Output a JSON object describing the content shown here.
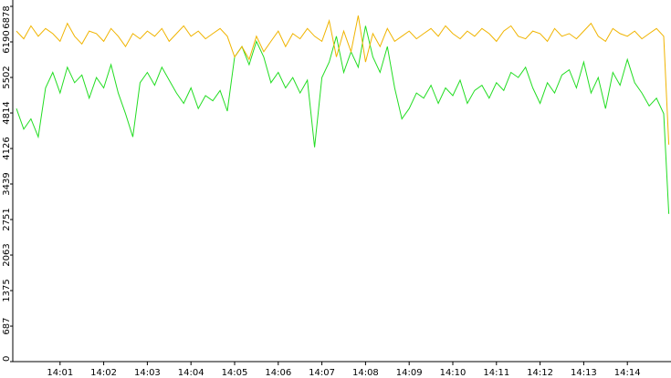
{
  "chart_data": {
    "type": "line",
    "x": [
      0,
      10,
      20,
      30,
      40,
      50,
      60,
      70,
      80,
      90,
      100,
      110,
      120,
      130,
      140,
      150,
      160,
      170,
      180,
      190,
      200,
      210,
      220,
      230,
      240,
      250,
      260,
      270,
      280,
      290,
      300,
      310,
      320,
      330,
      340,
      350,
      360,
      370,
      380,
      390,
      400,
      410,
      420,
      430,
      440,
      450,
      460,
      470,
      480,
      490,
      500,
      510,
      520,
      530,
      540,
      550,
      560,
      570,
      580,
      590,
      600,
      610,
      620,
      630,
      640,
      650,
      660,
      670,
      680,
      690,
      700,
      710,
      720,
      730,
      740,
      750,
      760,
      770,
      780,
      790,
      800,
      810,
      820,
      830,
      840,
      850,
      860,
      870,
      880,
      890,
      897
    ],
    "series": [
      {
        "color": "#22dd22",
        "values": [
          4900,
          4500,
          4700,
          4350,
          5300,
          5600,
          5200,
          5700,
          5400,
          5550,
          5100,
          5500,
          5300,
          5750,
          5200,
          4800,
          4350,
          5400,
          5600,
          5350,
          5700,
          5450,
          5200,
          5000,
          5300,
          4900,
          5150,
          5050,
          5250,
          4850,
          5900,
          6100,
          5750,
          6200,
          5900,
          5400,
          5600,
          5300,
          5500,
          5200,
          5450,
          4150,
          5500,
          5800,
          6300,
          5600,
          6000,
          5700,
          6500,
          5900,
          5600,
          6100,
          5300,
          4700,
          4900,
          5200,
          5100,
          5350,
          5000,
          5300,
          5150,
          5450,
          5000,
          5250,
          5350,
          5100,
          5400,
          5250,
          5600,
          5500,
          5700,
          5300,
          5000,
          5400,
          5200,
          5550,
          5650,
          5300,
          5800,
          5200,
          5500,
          4900,
          5600,
          5350,
          5850,
          5400,
          5200,
          4950,
          5100,
          4800,
          2860
        ]
      },
      {
        "color": "#f0b400",
        "values": [
          6400,
          6250,
          6500,
          6300,
          6450,
          6350,
          6200,
          6550,
          6300,
          6150,
          6400,
          6350,
          6200,
          6450,
          6300,
          6100,
          6350,
          6250,
          6400,
          6300,
          6450,
          6200,
          6350,
          6500,
          6300,
          6400,
          6250,
          6350,
          6450,
          6300,
          5900,
          6100,
          5850,
          6300,
          6000,
          6200,
          6400,
          6100,
          6350,
          6250,
          6450,
          6300,
          6200,
          6600,
          5900,
          6400,
          6000,
          6700,
          5800,
          6350,
          6100,
          6450,
          6200,
          6300,
          6400,
          6250,
          6350,
          6450,
          6300,
          6500,
          6350,
          6250,
          6400,
          6300,
          6450,
          6350,
          6200,
          6400,
          6500,
          6300,
          6250,
          6400,
          6350,
          6200,
          6450,
          6300,
          6350,
          6250,
          6400,
          6550,
          6300,
          6200,
          6450,
          6350,
          6300,
          6400,
          6250,
          6350,
          6450,
          6300,
          4200
        ]
      }
    ],
    "xlim": [
      -5,
      900
    ],
    "xticks": [
      {
        "value": 60,
        "label": "14:01"
      },
      {
        "value": 120,
        "label": "14:02"
      },
      {
        "value": 180,
        "label": "14:03"
      },
      {
        "value": 240,
        "label": "14:04"
      },
      {
        "value": 300,
        "label": "14:05"
      },
      {
        "value": 360,
        "label": "14:06"
      },
      {
        "value": 420,
        "label": "14:07"
      },
      {
        "value": 480,
        "label": "14:08"
      },
      {
        "value": 540,
        "label": "14:09"
      },
      {
        "value": 600,
        "label": "14:10"
      },
      {
        "value": 660,
        "label": "14:11"
      },
      {
        "value": 720,
        "label": "14:12"
      },
      {
        "value": 780,
        "label": "14:13"
      },
      {
        "value": 840,
        "label": "14:14"
      }
    ],
    "ylim": [
      0,
      6878
    ],
    "yticks": [
      0,
      687,
      1375,
      2063,
      2751,
      3439,
      4126,
      4814,
      5502,
      6190,
      6878
    ]
  }
}
